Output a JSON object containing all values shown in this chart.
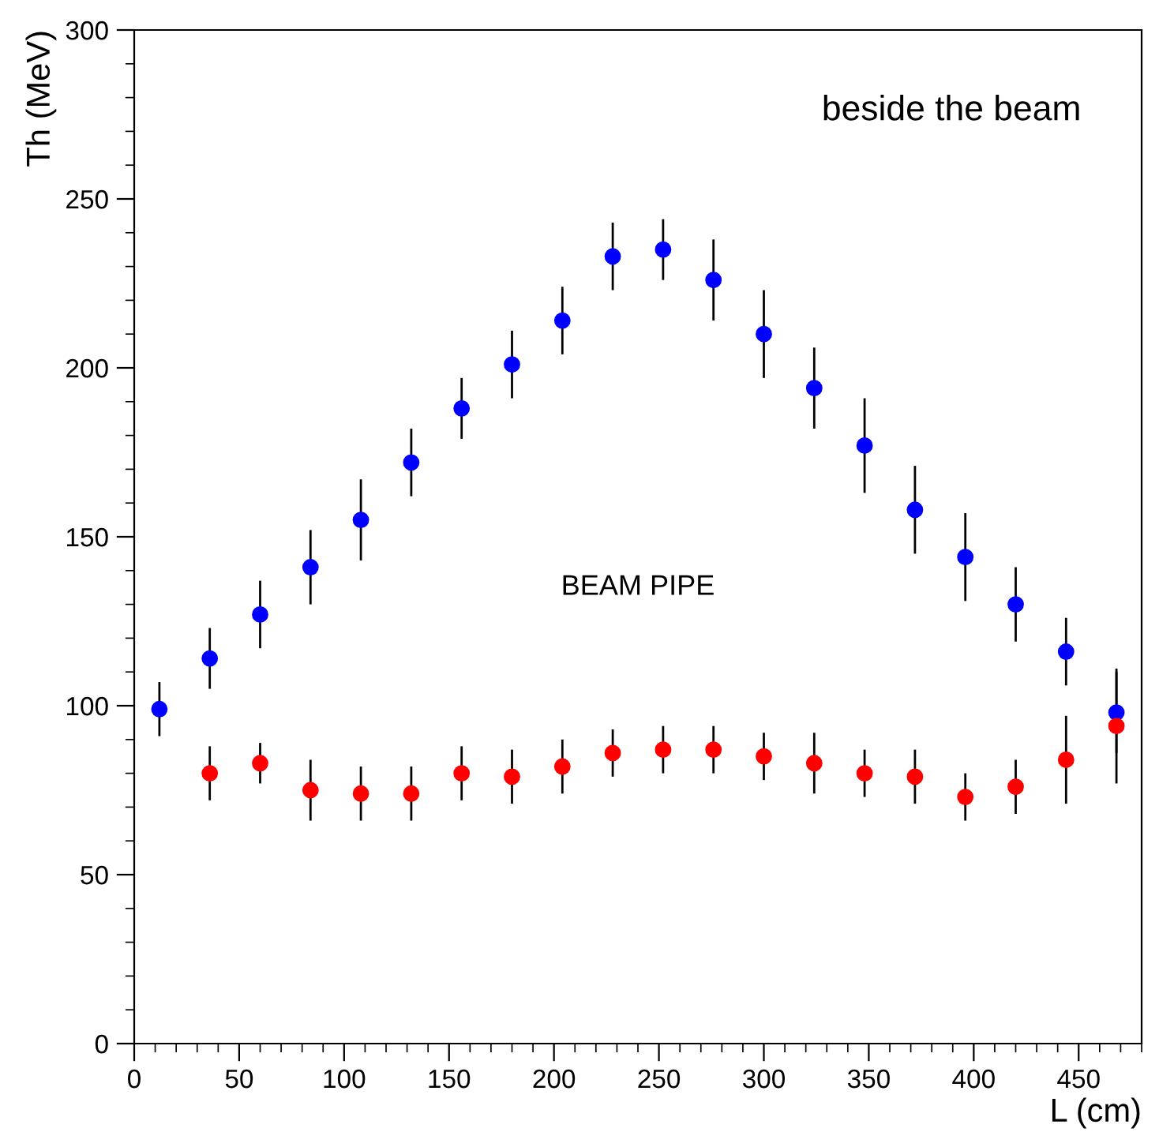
{
  "chart_data": {
    "type": "scatter",
    "xlabel": "L (cm)",
    "ylabel": "Th (MeV)",
    "annotations": [
      "beside the beam",
      "BEAM PIPE"
    ],
    "xlim": [
      0,
      480
    ],
    "xticks": [
      0,
      50,
      100,
      150,
      200,
      250,
      300,
      350,
      400,
      450
    ],
    "ylim": [
      0,
      300
    ],
    "yticks": [
      0,
      50,
      100,
      150,
      200,
      250,
      300
    ],
    "marker": "circle",
    "grid": false,
    "series": [
      {
        "color": "#0000ff",
        "x": [
          12,
          36,
          60,
          84,
          108,
          132,
          156,
          180,
          204,
          228,
          252,
          276,
          300,
          324,
          348,
          372,
          396,
          420,
          444,
          468
        ],
        "values": [
          99,
          114,
          127,
          141,
          155,
          172,
          188,
          201,
          214,
          233,
          235,
          226,
          210,
          194,
          177,
          158,
          144,
          130,
          116,
          98
        ],
        "errors": [
          8,
          9,
          10,
          11,
          12,
          10,
          9,
          10,
          10,
          10,
          9,
          12,
          13,
          12,
          14,
          13,
          13,
          11,
          10,
          12
        ]
      },
      {
        "color": "#ff0000",
        "x": [
          36,
          60,
          84,
          108,
          132,
          156,
          180,
          204,
          228,
          252,
          276,
          300,
          324,
          348,
          372,
          396,
          420,
          444,
          468
        ],
        "values": [
          80,
          83,
          75,
          74,
          74,
          80,
          79,
          82,
          86,
          87,
          87,
          85,
          83,
          80,
          79,
          73,
          76,
          84,
          94
        ],
        "errors": [
          8,
          6,
          9,
          8,
          8,
          8,
          8,
          8,
          7,
          7,
          7,
          7,
          9,
          7,
          8,
          7,
          8,
          13,
          17
        ]
      }
    ]
  }
}
